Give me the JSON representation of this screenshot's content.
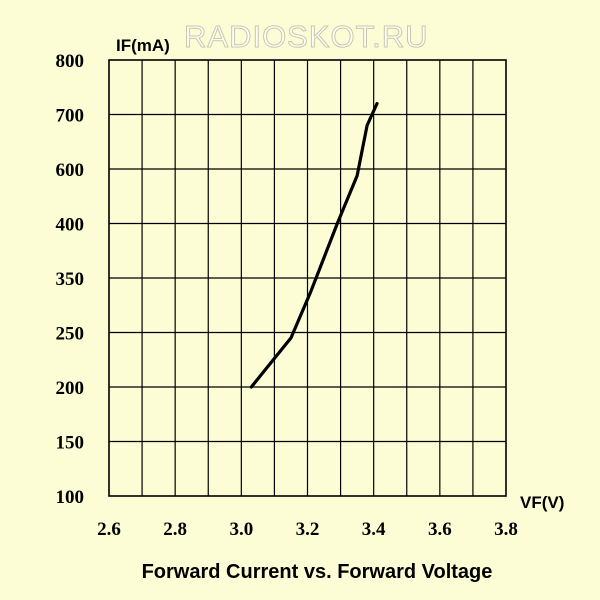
{
  "watermark": "RADIOSKOT.RU",
  "caption": "Forward Current vs. Forward Voltage",
  "chart_data": {
    "type": "line",
    "title": "Forward Current vs. Forward Voltage",
    "xlabel": "VF(V)",
    "ylabel": "IF(mA)",
    "x_ticks": [
      "2.6",
      "2.8",
      "3.0",
      "3.2",
      "3.4",
      "3.6",
      "3.8"
    ],
    "y_ticks": [
      "800",
      "700",
      "600",
      "400",
      "350",
      "250",
      "200",
      "150",
      "100"
    ],
    "xlim": [
      2.6,
      3.8
    ],
    "y_scale": "non-uniform (tick labels as printed)",
    "grid": true,
    "series": [
      {
        "x": [
          3.03,
          3.15,
          3.21,
          3.29,
          3.35,
          3.38,
          3.41
        ],
        "y": [
          200,
          245,
          325,
          400,
          575,
          680,
          720
        ]
      }
    ]
  }
}
